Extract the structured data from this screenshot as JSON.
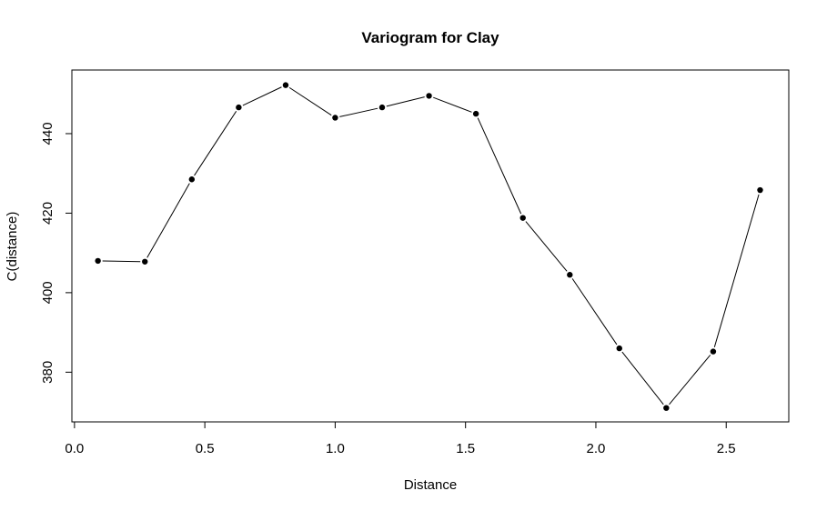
{
  "chart_data": {
    "type": "line",
    "title": "Variogram for Clay",
    "xlabel": "Distance",
    "ylabel": "C(distance)",
    "xlim": [
      -0.01,
      2.74
    ],
    "ylim": [
      367.5,
      456.0
    ],
    "xticks": [
      {
        "value": 0.0,
        "label": "0.0"
      },
      {
        "value": 0.5,
        "label": "0.5"
      },
      {
        "value": 1.0,
        "label": "1.0"
      },
      {
        "value": 1.5,
        "label": "1.5"
      },
      {
        "value": 2.0,
        "label": "2.0"
      },
      {
        "value": 2.5,
        "label": "2.5"
      }
    ],
    "yticks": [
      {
        "value": 380,
        "label": "380"
      },
      {
        "value": 400,
        "label": "400"
      },
      {
        "value": 420,
        "label": "420"
      },
      {
        "value": 440,
        "label": "440"
      }
    ],
    "grid": false,
    "series": [
      {
        "x": [
          0.09,
          0.27,
          0.45,
          0.63,
          0.81,
          1.0,
          1.18,
          1.36,
          1.54,
          1.72,
          1.9,
          2.09,
          2.27,
          2.45,
          2.63
        ],
        "y": [
          408.0,
          407.8,
          428.5,
          446.6,
          452.2,
          444.0,
          446.6,
          449.5,
          445.0,
          418.8,
          404.5,
          386.0,
          371.0,
          385.2,
          425.8
        ]
      }
    ],
    "colors": {
      "line": "#000000",
      "points": "#000000",
      "axes": "#000000"
    }
  }
}
